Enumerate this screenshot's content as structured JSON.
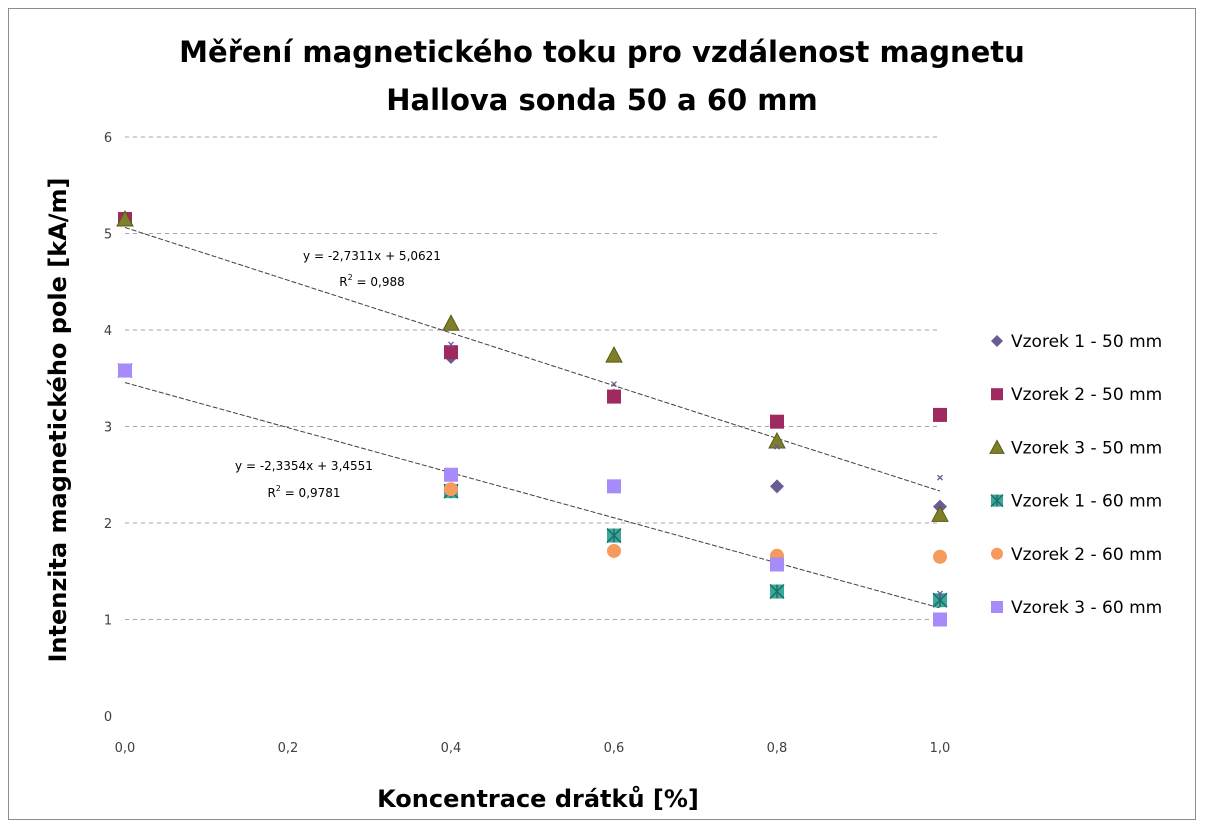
{
  "chart_data": {
    "type": "scatter",
    "title": "Měření magnetického toku pro vzdálenost magnetu",
    "subtitle": "Hallova sonda 50 a 60 mm",
    "xlabel": "Koncentrace drátků [%]",
    "ylabel": "Intenzita magnetického pole [kA/m]",
    "xlim": [
      0,
      1.0
    ],
    "ylim": [
      0,
      6
    ],
    "x_ticks": [
      "0,0",
      "0,2",
      "0,4",
      "0,6",
      "0,8",
      "1,0"
    ],
    "y_ticks": [
      "0",
      "1",
      "2",
      "3",
      "4",
      "5",
      "6"
    ],
    "grid": "horizontal dashed",
    "legend_position": "right",
    "series": [
      {
        "name": "Vzorek 1 - 50 mm",
        "marker": "diamond",
        "color": "#6b5b95",
        "x": [
          0,
          0.4,
          0.6,
          0.8,
          1.0
        ],
        "y": [
          5.15,
          3.72,
          3.32,
          2.38,
          2.17
        ]
      },
      {
        "name": "Vzorek 2 - 50 mm",
        "marker": "square",
        "color": "#9e2a5f",
        "x": [
          0,
          0.4,
          0.6,
          0.8,
          1.0
        ],
        "y": [
          5.15,
          3.77,
          3.31,
          3.05,
          3.12
        ]
      },
      {
        "name": "Vzorek 3 - 50 mm",
        "marker": "triangle",
        "color": "#7f7f2a",
        "x": [
          0,
          0.4,
          0.6,
          0.8,
          1.0
        ],
        "y": [
          5.15,
          4.07,
          3.74,
          2.85,
          2.09
        ]
      },
      {
        "name": "Vzorek 1 - 60 mm",
        "marker": "asterisk",
        "color": "#3aa89a",
        "x": [
          0,
          0.4,
          0.6,
          0.8,
          1.0
        ],
        "y": [
          3.58,
          2.33,
          1.87,
          1.29,
          1.2
        ]
      },
      {
        "name": "Vzorek 2 - 60 mm",
        "marker": "circle",
        "color": "#f79a5e",
        "x": [
          0,
          0.4,
          0.6,
          0.8,
          1.0
        ],
        "y": [
          3.58,
          2.35,
          1.71,
          1.66,
          1.65
        ]
      },
      {
        "name": "Vzorek 3 - 60 mm",
        "marker": "square",
        "color": "#a78bfa",
        "x": [
          0,
          0.4,
          0.6,
          0.8,
          1.0
        ],
        "y": [
          3.58,
          2.5,
          2.38,
          1.57,
          1.0
        ]
      }
    ],
    "extra_points": [
      {
        "x": 0.4,
        "y": 3.85
      },
      {
        "x": 0.6,
        "y": 3.44
      },
      {
        "x": 0.8,
        "y": 2.79
      },
      {
        "x": 1.0,
        "y": 2.47
      },
      {
        "x": 1.0,
        "y": 1.27
      }
    ],
    "trendlines": [
      {
        "slope": -2.7311,
        "intercept": 5.0621,
        "equation": "y = -2,7311x + 5,0621",
        "r2_label": "R",
        "r2_value": " = 0,988"
      },
      {
        "slope": -2.3354,
        "intercept": 3.4551,
        "equation": "y = -2,3354x + 3,4551",
        "r2_label": "R",
        "r2_value": " = 0,9781"
      }
    ],
    "r2_superscript": "2"
  }
}
